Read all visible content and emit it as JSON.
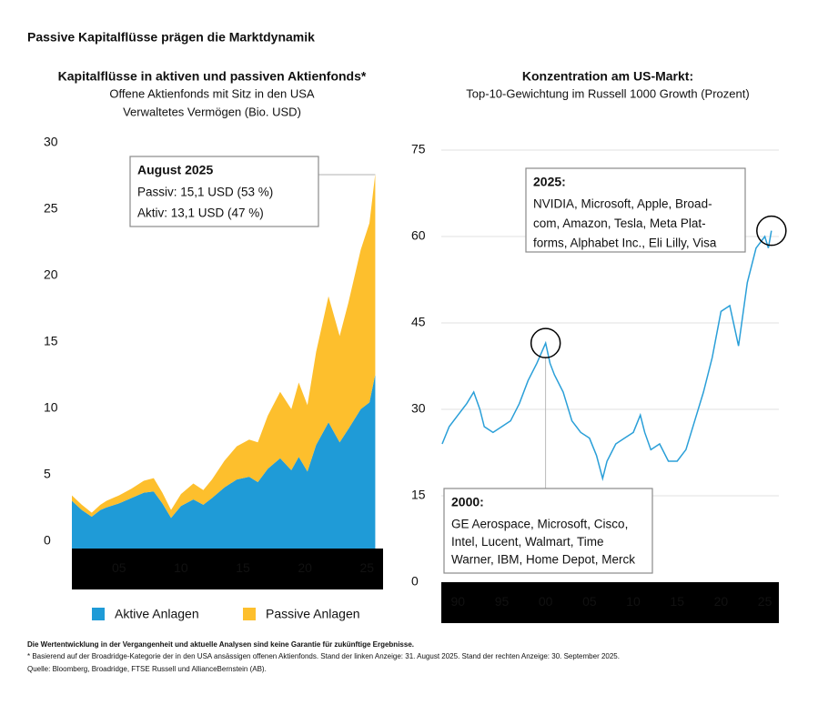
{
  "title": "Passive Kapitalflüsse prägen die Marktdynamik",
  "chart_data": [
    {
      "type": "stacked-area",
      "title": "Kapitalflüsse in aktiven und passiven Aktienfonds*",
      "subtitle": [
        "Offene Aktienfonds mit Sitz in den USA",
        "Verwaltetes Vermögen (Bio. USD)"
      ],
      "x": [
        2001.2,
        2002.0,
        2002.8,
        2003.5,
        2004.0,
        2005.0,
        2006.0,
        2007.0,
        2007.8,
        2008.5,
        2009.2,
        2010.0,
        2011.0,
        2011.8,
        2012.5,
        2013.5,
        2014.5,
        2015.5,
        2016.2,
        2017.0,
        2018.0,
        2018.9,
        2019.5,
        2020.2,
        2020.9,
        2021.9,
        2022.8,
        2023.5,
        2024.5,
        2025.2,
        2025.67
      ],
      "series": [
        {
          "name": "Aktive Anlagen",
          "color": "#1f9bd7",
          "values": [
            3.6,
            2.9,
            2.4,
            2.9,
            3.1,
            3.4,
            3.8,
            4.2,
            4.3,
            3.4,
            2.3,
            3.2,
            3.7,
            3.3,
            3.8,
            4.6,
            5.2,
            5.4,
            5.0,
            6.0,
            6.8,
            5.9,
            6.9,
            5.8,
            7.8,
            9.5,
            8.0,
            9.0,
            10.5,
            11.0,
            13.1
          ]
        },
        {
          "name": "Passive Anlagen",
          "color": "#fdbf2d",
          "values": [
            0.4,
            0.4,
            0.3,
            0.4,
            0.5,
            0.6,
            0.7,
            0.9,
            1.0,
            0.8,
            0.6,
            0.9,
            1.2,
            1.1,
            1.4,
            2.0,
            2.5,
            2.8,
            3.0,
            4.0,
            5.0,
            4.6,
            5.6,
            5.0,
            7.0,
            9.5,
            8.0,
            9.5,
            12.0,
            13.5,
            15.1
          ]
        }
      ],
      "xlim": [
        2001.2,
        2026.3
      ],
      "xticks": [
        {
          "value": 2005,
          "label": "05"
        },
        {
          "value": 2010,
          "label": "10"
        },
        {
          "value": 2015,
          "label": "15"
        },
        {
          "value": 2020,
          "label": "20"
        },
        {
          "value": 2025,
          "label": "25"
        }
      ],
      "ylim": [
        0,
        30
      ],
      "yticks": [
        0,
        5,
        10,
        15,
        20,
        25,
        30
      ],
      "grid": false,
      "annotations": [
        {
          "title": "August 2025",
          "lines": [
            "Passiv: 15,1 USD (53 %)",
            "Aktiv: 13,1 USD (47 %)"
          ]
        }
      ]
    },
    {
      "type": "line",
      "title": "Konzentration am US-Markt:",
      "subtitle": [
        "Top-10-Gewichtung im Russell 1000 Growth (Prozent)"
      ],
      "x": [
        1988.2,
        1989,
        1990,
        1991,
        1991.8,
        1992.5,
        1993,
        1994,
        1995,
        1996,
        1997,
        1998,
        1999,
        2000,
        2000.5,
        2001,
        2002,
        2003,
        2004,
        2005,
        2005.8,
        2006.5,
        2007,
        2008,
        2009,
        2010,
        2010.8,
        2011.3,
        2012,
        2013,
        2014,
        2015,
        2016,
        2017,
        2018,
        2019,
        2020,
        2021,
        2022,
        2023,
        2024,
        2025,
        2025.4,
        2025.75
      ],
      "values": [
        24,
        27,
        29,
        31,
        33,
        30,
        27,
        26,
        27,
        28,
        31,
        35,
        38,
        41.5,
        38,
        36,
        33,
        28,
        26,
        25,
        22,
        18,
        21,
        24,
        25,
        26,
        29,
        26,
        23,
        24,
        21,
        21,
        23,
        28,
        33,
        39,
        47,
        48,
        41,
        52,
        58,
        60,
        58,
        61
      ],
      "color": "#2a9fd8",
      "xlim": [
        1988.1,
        2026.6
      ],
      "xticks": [
        {
          "value": 1990,
          "label": "90"
        },
        {
          "value": 1995,
          "label": "95"
        },
        {
          "value": 2000,
          "label": "00"
        },
        {
          "value": 2005,
          "label": "05"
        },
        {
          "value": 2010,
          "label": "10"
        },
        {
          "value": 2015,
          "label": "15"
        },
        {
          "value": 2020,
          "label": "20"
        },
        {
          "value": 2025,
          "label": "25"
        }
      ],
      "ylim": [
        0,
        75
      ],
      "yticks": [
        0,
        15,
        30,
        45,
        60,
        75
      ],
      "grid": true,
      "annotations": [
        {
          "title": "2025:",
          "lines": [
            "NVIDIA, Microsoft, Apple, Broad-",
            "com, Amazon, Tesla, Meta Plat-",
            "forms, Alphabet Inc., Eli Lilly, Visa"
          ]
        },
        {
          "title": "2000:",
          "lines": [
            "GE Aerospace, Microsoft, Cisco,",
            "Intel, Lucent, Walmart, Time",
            "Warner, IBM, Home Depot, Merck"
          ]
        }
      ]
    }
  ],
  "footnotes": [
    "Die Wertentwicklung in der Vergangenheit und aktuelle Analysen sind keine Garantie für zukünftige Ergebnisse.",
    "* Basierend auf der Broadridge-Kategorie der in den USA ansässigen offenen Aktienfonds. Stand der linken Anzeige: 31. August 2025. Stand der rechten Anzeige: 30. September 2025.",
    "Quelle: Bloomberg, Broadridge, FTSE Russell und AllianceBernstein (AB)."
  ]
}
